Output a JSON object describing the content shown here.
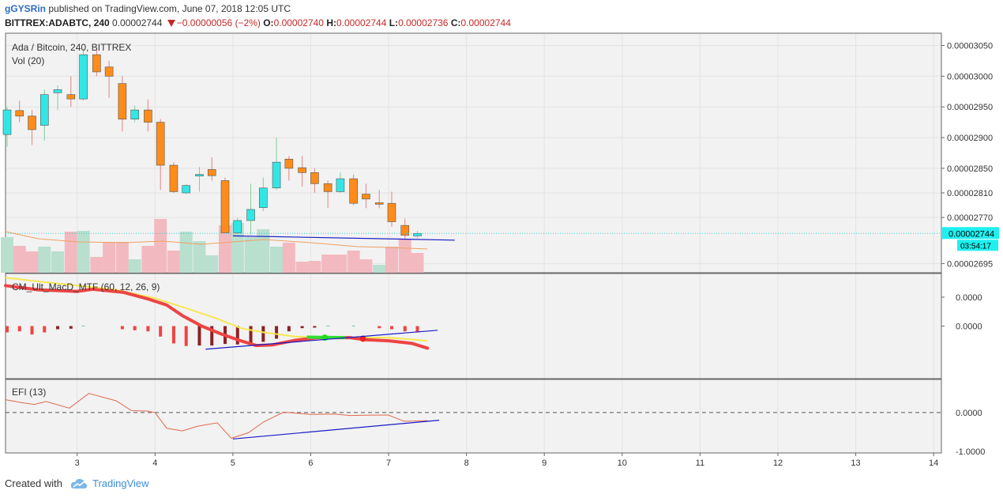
{
  "header": {
    "author": "gGYSRin",
    "published": "published on TradingView.com, June 07, 2018 12:05 UTC",
    "symbol": "BITTREX:ADABTC, 240",
    "price": "0.00002744",
    "change": "−0.00000056 (−2%)",
    "o_label": "O:",
    "o_value": "0.00002740",
    "h_label": "H:",
    "h_value": "0.00002744",
    "l_label": "L:",
    "l_value": "0.00002736",
    "c_label": "C:",
    "c_value": "0.00002744"
  },
  "footer": {
    "created_with": "Created with",
    "brand": "TradingView"
  },
  "colors": {
    "up": "#33e6e6",
    "down": "#ff8c1a",
    "vol_up": "#b9dfcf",
    "vol_down": "#f2bac0",
    "macd_line": "#ee4444",
    "signal": "#f5e851",
    "efi": "#e0684c",
    "trend": "#1a1ac8"
  },
  "chart_data": [
    {
      "pane": "price",
      "type": "candlestick",
      "title": "Ada / Bitcoin, 240, BITTREX",
      "indicator": "Vol (20)",
      "y_ticks": [
        "0.00003050",
        "0.00003000",
        "0.00002950",
        "0.00002900",
        "0.00002850",
        "0.00002810",
        "0.00002770",
        "0.00002695"
      ],
      "last_price_label": "0.00002744",
      "countdown_label": "03:54:17",
      "x_ticks": [
        "3",
        "4",
        "5",
        "6",
        "7",
        "8",
        "9",
        "10",
        "11",
        "12",
        "13",
        "14"
      ],
      "x_range": [
        2.08,
        14.1
      ],
      "y_range": [
        2.68e-05,
        3.07e-05
      ],
      "candles": [
        {
          "t": 2.1,
          "o": 2.905e-05,
          "h": 2.95e-05,
          "l": 2.885e-05,
          "c": 2.945e-05
        },
        {
          "t": 2.26,
          "o": 2.944e-05,
          "h": 2.96e-05,
          "l": 2.925e-05,
          "c": 2.935e-05
        },
        {
          "t": 2.42,
          "o": 2.935e-05,
          "h": 2.945e-05,
          "l": 2.888e-05,
          "c": 2.913e-05
        },
        {
          "t": 2.58,
          "o": 2.92e-05,
          "h": 2.978e-05,
          "l": 2.895e-05,
          "c": 2.97e-05
        },
        {
          "t": 2.75,
          "o": 2.973e-05,
          "h": 2.985e-05,
          "l": 2.945e-05,
          "c": 2.978e-05
        },
        {
          "t": 2.92,
          "o": 2.97e-05,
          "h": 3e-05,
          "l": 2.95e-05,
          "c": 2.963e-05
        },
        {
          "t": 3.08,
          "o": 2.963e-05,
          "h": 3.045e-05,
          "l": 2.96e-05,
          "c": 3.035e-05
        },
        {
          "t": 3.25,
          "o": 3.035e-05,
          "h": 3.045e-05,
          "l": 3e-05,
          "c": 3.007e-05
        },
        {
          "t": 3.41,
          "o": 3.015e-05,
          "h": 3.025e-05,
          "l": 2.965e-05,
          "c": 3e-05
        },
        {
          "t": 3.58,
          "o": 2.988e-05,
          "h": 3e-05,
          "l": 2.91e-05,
          "c": 2.93e-05
        },
        {
          "t": 3.74,
          "o": 2.93e-05,
          "h": 2.952e-05,
          "l": 2.925e-05,
          "c": 2.945e-05
        },
        {
          "t": 3.91,
          "o": 2.945e-05,
          "h": 2.962e-05,
          "l": 2.91e-05,
          "c": 2.925e-05
        },
        {
          "t": 4.07,
          "o": 2.925e-05,
          "h": 2.93e-05,
          "l": 2.815e-05,
          "c": 2.855e-05
        },
        {
          "t": 4.24,
          "o": 2.855e-05,
          "h": 2.86e-05,
          "l": 2.81e-05,
          "c": 2.812e-05
        },
        {
          "t": 4.4,
          "o": 2.81e-05,
          "h": 2.824e-05,
          "l": 2.808e-05,
          "c": 2.822e-05
        },
        {
          "t": 4.57,
          "o": 2.839e-05,
          "h": 2.852e-05,
          "l": 2.812e-05,
          "c": 2.84e-05
        },
        {
          "t": 4.73,
          "o": 2.848e-05,
          "h": 2.868e-05,
          "l": 2.83e-05,
          "c": 2.838e-05
        },
        {
          "t": 4.9,
          "o": 2.83e-05,
          "h": 2.835e-05,
          "l": 2.745e-05,
          "c": 2.745e-05
        },
        {
          "t": 5.06,
          "o": 2.745e-05,
          "h": 2.77e-05,
          "l": 2.743e-05,
          "c": 2.765e-05
        },
        {
          "t": 5.23,
          "o": 2.765e-05,
          "h": 2.825e-05,
          "l": 2.742e-05,
          "c": 2.783e-05
        },
        {
          "t": 5.39,
          "o": 2.786e-05,
          "h": 2.835e-05,
          "l": 2.78e-05,
          "c": 2.818e-05
        },
        {
          "t": 5.56,
          "o": 2.818e-05,
          "h": 2.9e-05,
          "l": 2.815e-05,
          "c": 2.86e-05
        },
        {
          "t": 5.72,
          "o": 2.865e-05,
          "h": 2.87e-05,
          "l": 2.83e-05,
          "c": 2.85e-05
        },
        {
          "t": 5.89,
          "o": 2.851e-05,
          "h": 2.87e-05,
          "l": 2.82e-05,
          "c": 2.843e-05
        },
        {
          "t": 6.05,
          "o": 2.843e-05,
          "h": 2.85e-05,
          "l": 2.81e-05,
          "c": 2.825e-05
        },
        {
          "t": 6.22,
          "o": 2.825e-05,
          "h": 2.83e-05,
          "l": 2.785e-05,
          "c": 2.812e-05
        },
        {
          "t": 6.38,
          "o": 2.812e-05,
          "h": 2.843e-05,
          "l": 2.81e-05,
          "c": 2.833e-05
        },
        {
          "t": 6.55,
          "o": 2.833e-05,
          "h": 2.84e-05,
          "l": 2.79e-05,
          "c": 2.793e-05
        },
        {
          "t": 6.71,
          "o": 2.808e-05,
          "h": 2.825e-05,
          "l": 2.785e-05,
          "c": 2.8e-05
        },
        {
          "t": 6.88,
          "o": 2.794e-05,
          "h": 2.815e-05,
          "l": 2.785e-05,
          "c": 2.792e-05
        },
        {
          "t": 7.04,
          "o": 2.793e-05,
          "h": 2.812e-05,
          "l": 2.755e-05,
          "c": 2.763e-05
        },
        {
          "t": 7.21,
          "o": 2.757e-05,
          "h": 2.768e-05,
          "l": 2.735e-05,
          "c": 2.741e-05
        },
        {
          "t": 7.37,
          "o": 2.74e-05,
          "h": 2.748e-05,
          "l": 2.736e-05,
          "c": 2.744e-05
        }
      ],
      "volume": [
        {
          "t": 2.1,
          "v": 0.45,
          "up": true
        },
        {
          "t": 2.26,
          "v": 0.34,
          "up": false
        },
        {
          "t": 2.42,
          "v": 0.27,
          "up": false
        },
        {
          "t": 2.58,
          "v": 0.33,
          "up": true
        },
        {
          "t": 2.75,
          "v": 0.27,
          "up": true
        },
        {
          "t": 2.92,
          "v": 0.52,
          "up": false
        },
        {
          "t": 3.08,
          "v": 0.53,
          "up": true
        },
        {
          "t": 3.25,
          "v": 0.2,
          "up": false
        },
        {
          "t": 3.41,
          "v": 0.39,
          "up": false
        },
        {
          "t": 3.58,
          "v": 0.39,
          "up": false
        },
        {
          "t": 3.74,
          "v": 0.17,
          "up": true
        },
        {
          "t": 3.91,
          "v": 0.34,
          "up": false
        },
        {
          "t": 4.07,
          "v": 0.68,
          "up": false
        },
        {
          "t": 4.24,
          "v": 0.28,
          "up": false
        },
        {
          "t": 4.4,
          "v": 0.52,
          "up": true
        },
        {
          "t": 4.57,
          "v": 0.4,
          "up": true
        },
        {
          "t": 4.73,
          "v": 0.22,
          "up": true
        },
        {
          "t": 4.9,
          "v": 0.6,
          "up": false
        },
        {
          "t": 5.06,
          "v": 0.63,
          "up": true
        },
        {
          "t": 5.23,
          "v": 0.45,
          "up": true
        },
        {
          "t": 5.39,
          "v": 0.55,
          "up": true
        },
        {
          "t": 5.56,
          "v": 0.33,
          "up": true
        },
        {
          "t": 5.72,
          "v": 0.38,
          "up": false
        },
        {
          "t": 5.89,
          "v": 0.14,
          "up": false
        },
        {
          "t": 6.05,
          "v": 0.15,
          "up": false
        },
        {
          "t": 6.22,
          "v": 0.23,
          "up": false
        },
        {
          "t": 6.38,
          "v": 0.23,
          "up": false
        },
        {
          "t": 6.55,
          "v": 0.28,
          "up": false
        },
        {
          "t": 6.71,
          "v": 0.17,
          "up": false
        },
        {
          "t": 6.88,
          "v": 0.1,
          "up": true
        },
        {
          "t": 7.04,
          "v": 0.33,
          "up": false
        },
        {
          "t": 7.21,
          "v": 0.43,
          "up": false
        },
        {
          "t": 7.37,
          "v": 0.25,
          "up": false
        }
      ],
      "vol_ma": [
        [
          2.08,
          0.52
        ],
        [
          2.5,
          0.43
        ],
        [
          3.0,
          0.39
        ],
        [
          3.6,
          0.38
        ],
        [
          4.1,
          0.4
        ],
        [
          4.6,
          0.36
        ],
        [
          5.0,
          0.39
        ],
        [
          5.4,
          0.42
        ],
        [
          6.0,
          0.38
        ],
        [
          6.6,
          0.33
        ],
        [
          7.0,
          0.32
        ],
        [
          7.5,
          0.3
        ]
      ],
      "trendline": [
        [
          5.0,
          2.74e-05
        ],
        [
          7.85,
          2.733e-05
        ]
      ]
    },
    {
      "pane": "macd",
      "type": "line",
      "title": "CM_Ult_MacD_MTF (60, 12, 26, 9)",
      "y_ticks": [
        "0.0000",
        "0.0000"
      ],
      "y_range": [
        -1,
        1
      ],
      "macd_line": [
        [
          2.08,
          0.77
        ],
        [
          2.5,
          0.69
        ],
        [
          3.0,
          0.66
        ],
        [
          3.2,
          0.7
        ],
        [
          3.6,
          0.64
        ],
        [
          3.9,
          0.52
        ],
        [
          4.15,
          0.4
        ],
        [
          4.35,
          0.2
        ],
        [
          4.6,
          0.0
        ],
        [
          4.85,
          -0.15
        ],
        [
          5.1,
          -0.28
        ],
        [
          5.3,
          -0.37
        ],
        [
          5.5,
          -0.36
        ],
        [
          5.8,
          -0.27
        ],
        [
          6.1,
          -0.22
        ],
        [
          6.5,
          -0.22
        ],
        [
          6.7,
          -0.26
        ],
        [
          7.0,
          -0.28
        ],
        [
          7.3,
          -0.33
        ],
        [
          7.5,
          -0.42
        ]
      ],
      "signal_line": [
        [
          2.08,
          0.92
        ],
        [
          2.5,
          0.85
        ],
        [
          3.0,
          0.77
        ],
        [
          3.5,
          0.69
        ],
        [
          4.0,
          0.53
        ],
        [
          4.4,
          0.34
        ],
        [
          4.8,
          0.14
        ],
        [
          5.1,
          -0.04
        ],
        [
          5.4,
          -0.12
        ],
        [
          5.8,
          -0.2
        ],
        [
          6.2,
          -0.22
        ],
        [
          6.6,
          -0.22
        ],
        [
          7.0,
          -0.22
        ],
        [
          7.5,
          -0.28
        ]
      ],
      "histogram": [
        {
          "t": 2.1,
          "v": -0.12,
          "c": "#ee4444"
        },
        {
          "t": 2.26,
          "v": -0.1,
          "c": "#ee4444"
        },
        {
          "t": 2.42,
          "v": -0.16,
          "c": "#ee4444"
        },
        {
          "t": 2.58,
          "v": -0.12,
          "c": "#ee4444"
        },
        {
          "t": 2.75,
          "v": -0.06,
          "c": "#8b2222"
        },
        {
          "t": 2.92,
          "v": -0.05,
          "c": "#8b2222"
        },
        {
          "t": 3.08,
          "v": 0.01,
          "c": "#70c0c0"
        },
        {
          "t": 3.58,
          "v": -0.06,
          "c": "#ee4444"
        },
        {
          "t": 3.74,
          "v": -0.08,
          "c": "#ee4444"
        },
        {
          "t": 3.91,
          "v": -0.1,
          "c": "#ee4444"
        },
        {
          "t": 4.07,
          "v": -0.2,
          "c": "#ee4444"
        },
        {
          "t": 4.24,
          "v": -0.33,
          "c": "#ee4444"
        },
        {
          "t": 4.4,
          "v": -0.38,
          "c": "#ee4444"
        },
        {
          "t": 4.57,
          "v": -0.37,
          "c": "#8b2222"
        },
        {
          "t": 4.73,
          "v": -0.37,
          "c": "#8b2222"
        },
        {
          "t": 4.9,
          "v": -0.34,
          "c": "#8b2222"
        },
        {
          "t": 5.06,
          "v": -0.35,
          "c": "#8b2222"
        },
        {
          "t": 5.23,
          "v": -0.32,
          "c": "#8b2222"
        },
        {
          "t": 5.39,
          "v": -0.3,
          "c": "#8b2222"
        },
        {
          "t": 5.56,
          "v": -0.24,
          "c": "#8b2222"
        },
        {
          "t": 5.72,
          "v": -0.1,
          "c": "#8b2222"
        },
        {
          "t": 5.89,
          "v": -0.04,
          "c": "#8b2222"
        },
        {
          "t": 6.05,
          "v": -0.03,
          "c": "#8b2222"
        },
        {
          "t": 6.22,
          "v": 0.01,
          "c": "#70c0c0"
        },
        {
          "t": 6.55,
          "v": 0.01,
          "c": "#70c0c0"
        },
        {
          "t": 6.88,
          "v": -0.04,
          "c": "#ee4444"
        },
        {
          "t": 7.04,
          "v": -0.06,
          "c": "#ee4444"
        },
        {
          "t": 7.21,
          "v": -0.1,
          "c": "#ee4444"
        },
        {
          "t": 7.37,
          "v": -0.12,
          "c": "#ee4444"
        }
      ],
      "cross_points": [
        {
          "t": 6.18,
          "v": -0.22,
          "c": "#22dd22"
        },
        {
          "t": 6.67,
          "v": -0.24,
          "c": "#ee2222"
        }
      ],
      "green_segment": [
        [
          5.95,
          -0.21
        ],
        [
          6.45,
          -0.22
        ]
      ],
      "trendline": [
        [
          4.65,
          -0.44
        ],
        [
          7.63,
          -0.08
        ]
      ]
    },
    {
      "pane": "efi",
      "type": "line",
      "title": "EFI (13)",
      "y_ticks": [
        "0.0000",
        "-1.0000"
      ],
      "y_range": [
        -1.1,
        0.9
      ],
      "efi_line": [
        [
          2.08,
          0.35
        ],
        [
          2.28,
          0.27
        ],
        [
          2.45,
          0.22
        ],
        [
          2.6,
          0.3
        ],
        [
          2.9,
          0.12
        ],
        [
          3.15,
          0.52
        ],
        [
          3.5,
          0.32
        ],
        [
          3.7,
          0.05
        ],
        [
          3.9,
          0.04
        ],
        [
          4.0,
          0.0
        ],
        [
          4.15,
          -0.43
        ],
        [
          4.35,
          -0.5
        ],
        [
          4.55,
          -0.37
        ],
        [
          4.8,
          -0.28
        ],
        [
          4.98,
          -0.7
        ],
        [
          5.2,
          -0.55
        ],
        [
          5.4,
          -0.25
        ],
        [
          5.65,
          0.01
        ],
        [
          6.0,
          -0.05
        ],
        [
          6.3,
          -0.04
        ],
        [
          6.5,
          -0.08
        ],
        [
          6.8,
          -0.07
        ],
        [
          7.0,
          -0.07
        ],
        [
          7.2,
          -0.24
        ],
        [
          7.5,
          -0.22
        ]
      ],
      "zero_line": 0,
      "trendline": [
        [
          5.0,
          -0.72
        ],
        [
          7.65,
          -0.21
        ]
      ]
    }
  ]
}
